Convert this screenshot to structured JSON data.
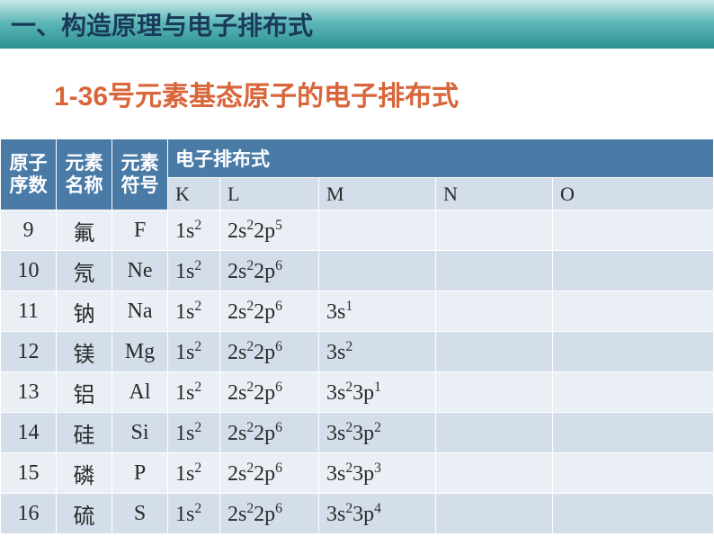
{
  "header": {
    "section_title": "一、构造原理与电子排布式",
    "subtitle": "1-36号元素基态原子的电子排布式"
  },
  "table": {
    "col_headers": {
      "atomic_number": "原子序数",
      "element_name": "元素名称",
      "element_symbol": "元素符号",
      "config_title": "电子排布式",
      "shells": [
        "K",
        "L",
        "M",
        "N",
        "O"
      ]
    },
    "rows": [
      {
        "num": "9",
        "name": "氟",
        "sym": "F",
        "K": "1s²",
        "L": "2s²2p⁵",
        "M": "",
        "N": "",
        "O": ""
      },
      {
        "num": "10",
        "name": "氖",
        "sym": "Ne",
        "K": "1s²",
        "L": "2s²2p⁶",
        "M": "",
        "N": "",
        "O": ""
      },
      {
        "num": "11",
        "name": "钠",
        "sym": "Na",
        "K": "1s²",
        "L": "2s²2p⁶",
        "M": "3s¹",
        "N": "",
        "O": ""
      },
      {
        "num": "12",
        "name": "镁",
        "sym": "Mg",
        "K": "1s²",
        "L": "2s²2p⁶",
        "M": "3s²",
        "N": "",
        "O": ""
      },
      {
        "num": "13",
        "name": "铝",
        "sym": "Al",
        "K": "1s²",
        "L": "2s²2p⁶",
        "M": "3s²3p¹",
        "N": "",
        "O": ""
      },
      {
        "num": "14",
        "name": "硅",
        "sym": "Si",
        "K": "1s²",
        "L": "2s²2p⁶",
        "M": "3s²3p²",
        "N": "",
        "O": ""
      },
      {
        "num": "15",
        "name": "磷",
        "sym": "P",
        "K": "1s²",
        "L": "2s²2p⁶",
        "M": "3s²3p³",
        "N": "",
        "O": ""
      },
      {
        "num": "16",
        "name": "硫",
        "sym": "S",
        "K": "1s²",
        "L": "2s²2p⁶",
        "M": "3s²3p⁴",
        "N": "",
        "O": ""
      }
    ]
  },
  "styling": {
    "header_bg": "#4a7ba6",
    "row_odd_bg": "#eaeef5",
    "row_even_bg": "#d4deea",
    "subtitle_color": "#d9653a",
    "top_gradient": [
      "#c8e8e8",
      "#5fb8b8",
      "#2a9090"
    ],
    "body_font": "Microsoft YaHei",
    "data_font": "Times New Roman"
  }
}
